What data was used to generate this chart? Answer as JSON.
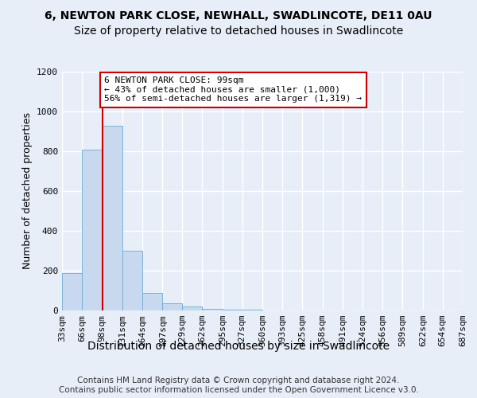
{
  "title1": "6, NEWTON PARK CLOSE, NEWHALL, SWADLINCOTE, DE11 0AU",
  "title2": "Size of property relative to detached houses in Swadlincote",
  "xlabel": "Distribution of detached houses by size in Swadlincote",
  "ylabel": "Number of detached properties",
  "bin_edges": [
    33,
    66,
    98,
    131,
    164,
    197,
    229,
    262,
    295,
    327,
    360,
    393,
    425,
    458,
    491,
    524,
    556,
    589,
    622,
    654,
    687
  ],
  "bar_heights": [
    190,
    810,
    930,
    300,
    90,
    35,
    20,
    10,
    5,
    3,
    2,
    1,
    1,
    0,
    0,
    0,
    0,
    0,
    0,
    0
  ],
  "bar_color": "#c8d9ef",
  "bar_edge_color": "#6aaad4",
  "property_size": 99,
  "red_line_color": "#cc0000",
  "annotation_line1": "6 NEWTON PARK CLOSE: 99sqm",
  "annotation_line2": "← 43% of detached houses are smaller (1,000)",
  "annotation_line3": "56% of semi-detached houses are larger (1,319) →",
  "annotation_box_color": "#ffffff",
  "annotation_box_edge": "#cc0000",
  "ylim": [
    0,
    1200
  ],
  "yticks": [
    0,
    200,
    400,
    600,
    800,
    1000,
    1200
  ],
  "footer_text": "Contains HM Land Registry data © Crown copyright and database right 2024.\nContains public sector information licensed under the Open Government Licence v3.0.",
  "background_color": "#e8eef8",
  "grid_color": "#ffffff",
  "title1_fontsize": 10,
  "title2_fontsize": 10,
  "xlabel_fontsize": 10,
  "ylabel_fontsize": 9,
  "tick_fontsize": 8,
  "annotation_fontsize": 8,
  "footer_fontsize": 7.5
}
